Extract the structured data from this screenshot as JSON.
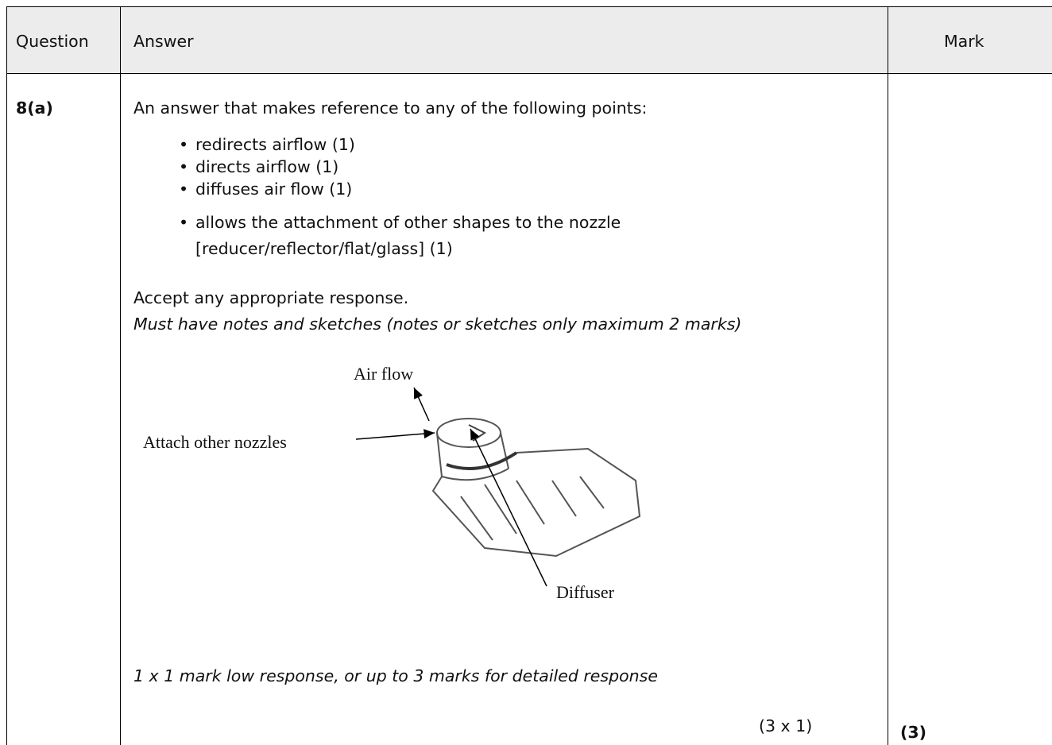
{
  "table": {
    "header": [
      "Question",
      "Answer",
      "Mark"
    ],
    "rows": [
      {
        "question": "8(a)",
        "answer": {
          "intro": "An answer that makes reference to any of the following points:",
          "bullets": [
            "redirects airflow (1)",
            "directs airflow (1)",
            "diffuses air flow (1)",
            "allows the attachment of other shapes to the nozzle [reducer/reflector/flat/glass] (1)"
          ],
          "accept": "Accept any appropriate response.",
          "note": "Must have notes and sketches (notes or sketches only maximum 2 marks)",
          "diagram": {
            "labels": [
              "Air flow",
              "Attach other nozzles",
              "Diffuser"
            ]
          },
          "guidance": "1 x 1 mark low response, or up to 3 marks for detailed response",
          "tariff": "(3 x 1)"
        },
        "mark": "(3)"
      }
    ]
  }
}
